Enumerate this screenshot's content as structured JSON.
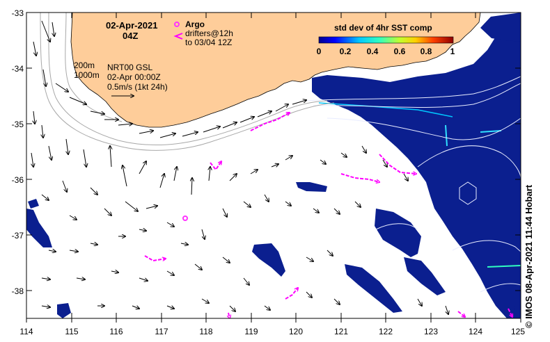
{
  "header": {
    "date": "02-Apr-2021",
    "time": "04Z"
  },
  "legend": {
    "argo_label": "Argo",
    "drifters_line1": "drifters@12h",
    "drifters_line2": "to 03/04 12Z",
    "colorbar_title": "std dev of 4hr SST comp",
    "colorbar_ticks": [
      "0",
      "0.2",
      "0.4",
      "0.6",
      "0.8",
      "1"
    ],
    "isobath_200": "200m",
    "isobath_1000": "1000m",
    "product_line1": "NRT00 GSL",
    "product_line2": "02-Apr 00:00Z",
    "product_line3": "0.5m/s (1kt 24h)",
    "argo_color": "#ff33ff",
    "drifter_color": "#ff00ff",
    "land_color": "#fecd9a",
    "ocean_mask_color": "#0b1f8f"
  },
  "axes": {
    "lon_ticks": [
      "114",
      "115",
      "116",
      "117",
      "118",
      "119",
      "120",
      "121",
      "122",
      "123",
      "124",
      "125"
    ],
    "lat_ticks": [
      "-33",
      "-34",
      "-35",
      "-36",
      "-37",
      "-38"
    ]
  },
  "credit": "© IMOS 08-Apr-2021 11:44 Hobart"
}
